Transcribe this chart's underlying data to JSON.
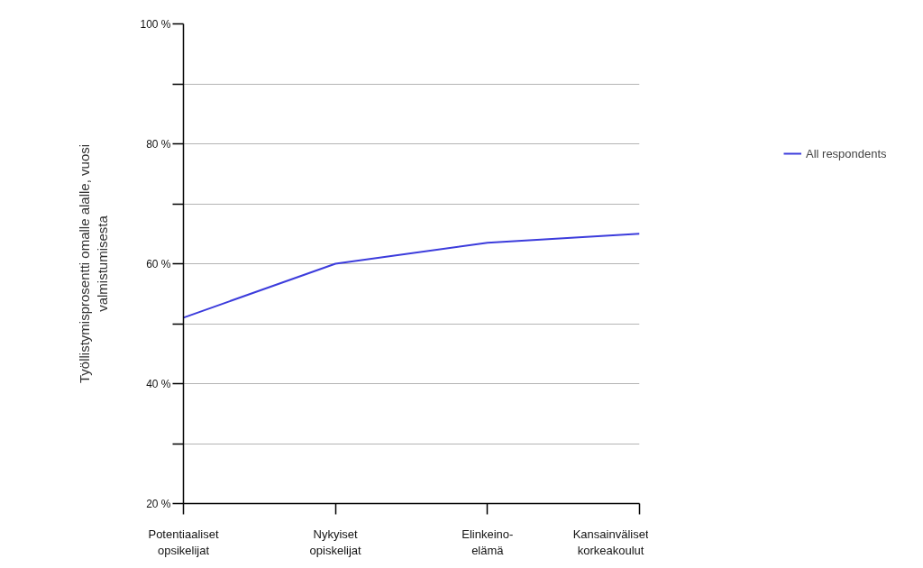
{
  "chart_data": {
    "type": "line",
    "ylabel": "Työllistymisprosentti omalle alalle, vuosi valmistumisesta",
    "categories": [
      "Potentiaaliset opsikelijat",
      "Nykyiset opiskelijat",
      "Elinkeino-elämä",
      "Kansainväliset korkeakoulut"
    ],
    "series": [
      {
        "name": "All respondents",
        "color": "#3c3cdc",
        "values": [
          51,
          60,
          63.5,
          65
        ]
      }
    ],
    "ylim": [
      20,
      100
    ],
    "yticks": [
      {
        "value": 20,
        "label": "20 %"
      },
      {
        "value": 30,
        "label": null
      },
      {
        "value": 40,
        "label": "40 %"
      },
      {
        "value": 50,
        "label": null
      },
      {
        "value": 60,
        "label": "60 %"
      },
      {
        "value": 70,
        "label": null
      },
      {
        "value": 80,
        "label": "80 %"
      },
      {
        "value": 90,
        "label": null
      },
      {
        "value": 100,
        "label": "100 %"
      }
    ],
    "grid": "y",
    "legend": "right",
    "line_style": "solid"
  }
}
